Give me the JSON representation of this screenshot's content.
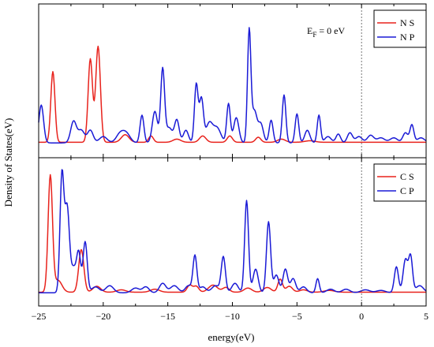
{
  "colors": {
    "s_orbital": "#e8221c",
    "p_orbital": "#1a1ad6",
    "fermi_line": "#555555"
  },
  "chart_data": {
    "type": "line",
    "xlabel": "energy(eV)",
    "ylabel": "Density of States(eV)",
    "xlim": [
      -25,
      5
    ],
    "xticks": [
      -25,
      -20,
      -15,
      -10,
      -5,
      0,
      5
    ],
    "y_ticks_shown": false,
    "grid": false,
    "fermi_level": 0,
    "panels": [
      {
        "name": "N",
        "annotation": {
          "main": "E",
          "sub": "F",
          "rest": " = 0 eV"
        },
        "legend_position": "top-right",
        "ymax": 1.0,
        "series": [
          {
            "name": "N S",
            "color": "#e8221c",
            "baseline": 0.01,
            "peaks": [
              [
                -23.9,
                0.56,
                0.16
              ],
              [
                -21.0,
                0.66,
                0.17
              ],
              [
                -20.4,
                0.76,
                0.18
              ],
              [
                -18.3,
                0.06,
                0.3
              ],
              [
                -16.3,
                0.05,
                0.18
              ],
              [
                -14.3,
                0.025,
                0.3
              ],
              [
                -12.3,
                0.05,
                0.25
              ],
              [
                -10.2,
                0.05,
                0.2
              ],
              [
                -8.0,
                0.04,
                0.2
              ],
              [
                -6.2,
                0.025,
                0.3
              ],
              [
                -4.0,
                0.012,
                0.4
              ]
            ]
          },
          {
            "name": "N P",
            "color": "#1a1ad6",
            "baseline": 0.005,
            "peaks": [
              [
                -24.8,
                0.3,
                0.18
              ],
              [
                -22.3,
                0.17,
                0.22
              ],
              [
                -21.7,
                0.1,
                0.25
              ],
              [
                -21.0,
                0.1,
                0.22
              ],
              [
                -20.0,
                0.05,
                0.3
              ],
              [
                -18.7,
                0.07,
                0.3
              ],
              [
                -18.2,
                0.07,
                0.3
              ],
              [
                -17.0,
                0.22,
                0.15
              ],
              [
                -16.0,
                0.25,
                0.2
              ],
              [
                -15.4,
                0.58,
                0.15
              ],
              [
                -14.9,
                0.12,
                0.25
              ],
              [
                -14.3,
                0.18,
                0.18
              ],
              [
                -13.6,
                0.1,
                0.2
              ],
              [
                -12.8,
                0.46,
                0.14
              ],
              [
                -12.4,
                0.35,
                0.16
              ],
              [
                -11.8,
                0.15,
                0.25
              ],
              [
                -11.2,
                0.12,
                0.3
              ],
              [
                -10.3,
                0.31,
                0.14
              ],
              [
                -9.7,
                0.2,
                0.2
              ],
              [
                -8.7,
                0.88,
                0.13
              ],
              [
                -8.3,
                0.25,
                0.2
              ],
              [
                -7.8,
                0.15,
                0.2
              ],
              [
                -7.0,
                0.18,
                0.15
              ],
              [
                -6.0,
                0.38,
                0.14
              ],
              [
                -5.0,
                0.23,
                0.14
              ],
              [
                -4.2,
                0.1,
                0.2
              ],
              [
                -3.3,
                0.22,
                0.13
              ],
              [
                -2.6,
                0.05,
                0.25
              ],
              [
                -1.8,
                0.07,
                0.18
              ],
              [
                -0.9,
                0.08,
                0.2
              ],
              [
                -0.2,
                0.05,
                0.25
              ],
              [
                0.7,
                0.06,
                0.25
              ],
              [
                1.5,
                0.04,
                0.3
              ],
              [
                2.5,
                0.04,
                0.3
              ],
              [
                3.4,
                0.08,
                0.2
              ],
              [
                3.9,
                0.14,
                0.15
              ],
              [
                4.6,
                0.04,
                0.3
              ]
            ]
          }
        ]
      },
      {
        "name": "C",
        "annotation": null,
        "legend_position": "top-right",
        "ymax": 1.0,
        "series": [
          {
            "name": "C S",
            "color": "#e8221c",
            "baseline": 0.01,
            "peaks": [
              [
                -24.1,
                0.98,
                0.17
              ],
              [
                -23.5,
                0.1,
                0.3
              ],
              [
                -21.7,
                0.36,
                0.2
              ],
              [
                -20.5,
                0.05,
                0.3
              ],
              [
                -18.6,
                0.02,
                0.35
              ],
              [
                -16.0,
                0.025,
                0.35
              ],
              [
                -13.3,
                0.06,
                0.2
              ],
              [
                -12.8,
                0.05,
                0.2
              ],
              [
                -11.5,
                0.06,
                0.35
              ],
              [
                -10.5,
                0.04,
                0.25
              ],
              [
                -8.8,
                0.035,
                0.3
              ],
              [
                -7.3,
                0.04,
                0.3
              ],
              [
                -6.3,
                0.11,
                0.18
              ],
              [
                -5.6,
                0.05,
                0.25
              ],
              [
                -4.5,
                0.02,
                0.3
              ],
              [
                -2.5,
                0.015,
                0.4
              ]
            ]
          },
          {
            "name": "C P",
            "color": "#1a1ad6",
            "baseline": 0.005,
            "peaks": [
              [
                -23.2,
                0.98,
                0.15
              ],
              [
                -22.8,
                0.72,
                0.18
              ],
              [
                -22.3,
                0.2,
                0.2
              ],
              [
                -21.9,
                0.33,
                0.16
              ],
              [
                -21.4,
                0.43,
                0.16
              ],
              [
                -20.6,
                0.05,
                0.3
              ],
              [
                -19.5,
                0.06,
                0.3
              ],
              [
                -17.5,
                0.04,
                0.3
              ],
              [
                -16.7,
                0.05,
                0.25
              ],
              [
                -15.4,
                0.08,
                0.25
              ],
              [
                -14.5,
                0.06,
                0.3
              ],
              [
                -13.4,
                0.06,
                0.25
              ],
              [
                -12.9,
                0.31,
                0.15
              ],
              [
                -12.3,
                0.05,
                0.25
              ],
              [
                -11.3,
                0.06,
                0.3
              ],
              [
                -10.7,
                0.3,
                0.16
              ],
              [
                -9.8,
                0.08,
                0.25
              ],
              [
                -8.9,
                0.78,
                0.15
              ],
              [
                -8.2,
                0.2,
                0.2
              ],
              [
                -7.2,
                0.6,
                0.16
              ],
              [
                -6.6,
                0.15,
                0.2
              ],
              [
                -5.9,
                0.2,
                0.18
              ],
              [
                -5.3,
                0.12,
                0.2
              ],
              [
                -4.5,
                0.05,
                0.25
              ],
              [
                -3.4,
                0.12,
                0.13
              ],
              [
                -2.4,
                0.03,
                0.3
              ],
              [
                -1.2,
                0.03,
                0.3
              ],
              [
                0.3,
                0.025,
                0.35
              ],
              [
                1.5,
                0.02,
                0.35
              ],
              [
                2.7,
                0.22,
                0.16
              ],
              [
                3.4,
                0.28,
                0.18
              ],
              [
                3.8,
                0.3,
                0.15
              ],
              [
                4.5,
                0.06,
                0.3
              ]
            ]
          }
        ]
      }
    ]
  }
}
